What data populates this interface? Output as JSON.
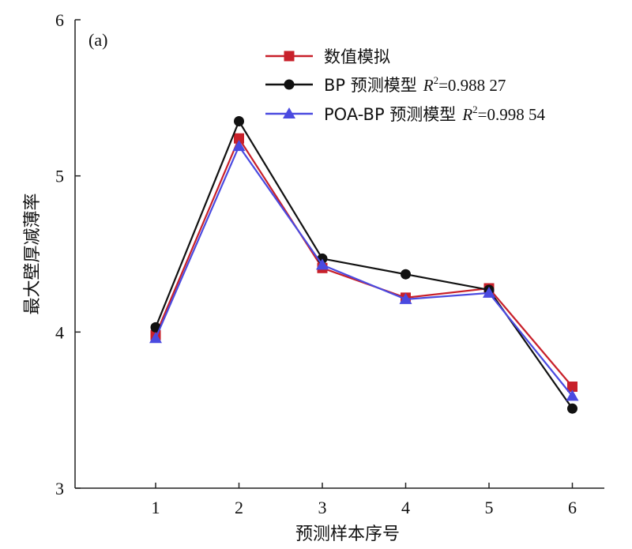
{
  "chart_data": {
    "type": "line",
    "panel_label": "(a)",
    "xlabel": "预测样本序号",
    "ylabel": "最大壁厚减薄率",
    "categories": [
      "1",
      "2",
      "3",
      "4",
      "5",
      "6"
    ],
    "yticks": [
      "3",
      "4",
      "5",
      "6"
    ],
    "ylim": [
      3,
      6
    ],
    "legend_position": "top-right",
    "series": [
      {
        "name": "数值模拟",
        "marker": "square",
        "color": "#c8202a",
        "values": [
          3.98,
          5.24,
          4.41,
          4.22,
          4.28,
          3.65
        ]
      },
      {
        "name": "BP 预测模型",
        "r2_label": "R",
        "r2_sup": "2",
        "r2_value": "=0.988 27",
        "marker": "circle",
        "color": "#111111",
        "values": [
          4.03,
          5.35,
          4.47,
          4.37,
          4.27,
          3.51
        ]
      },
      {
        "name": "POA-BP 预测模型",
        "r2_label": "R",
        "r2_sup": "2",
        "r2_value": "=0.998 54",
        "marker": "triangle",
        "color": "#4a4ae0",
        "values": [
          3.96,
          5.19,
          4.43,
          4.21,
          4.25,
          3.59
        ]
      }
    ]
  }
}
